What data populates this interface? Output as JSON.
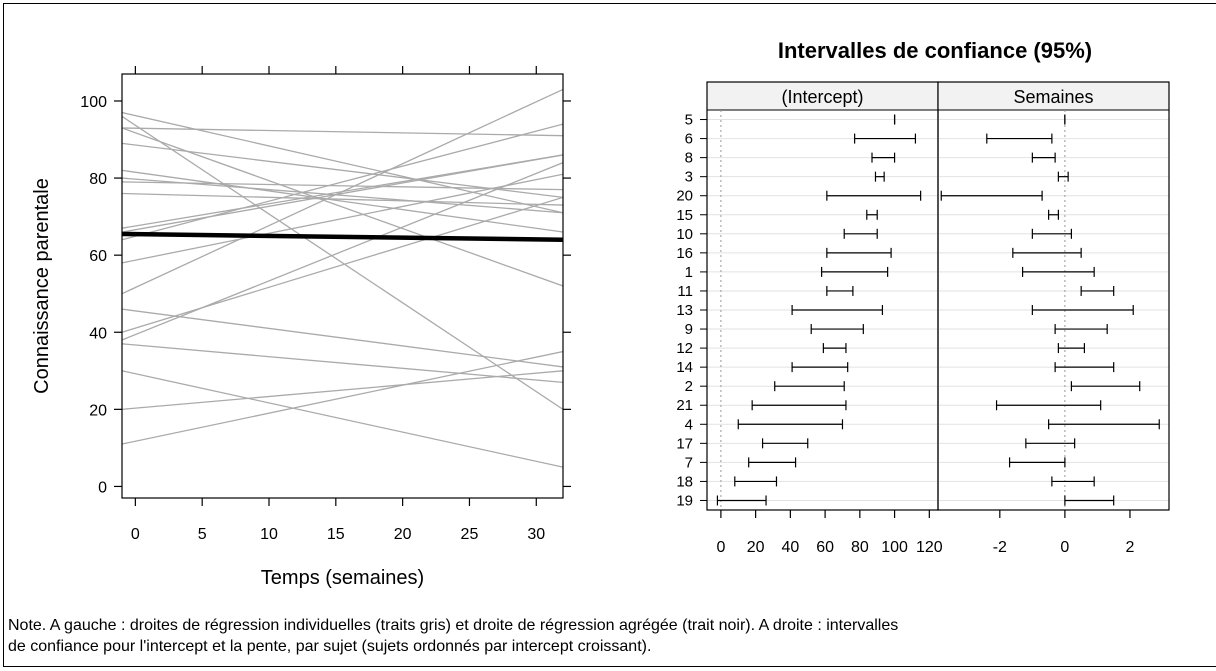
{
  "chart_data": [
    {
      "type": "line",
      "xlabel": "Temps (semaines)",
      "ylabel": "Connaissance parentale",
      "xlim": [
        -1,
        32
      ],
      "ylim": [
        -3,
        107
      ],
      "xticks": [
        "0",
        "5",
        "10",
        "15",
        "20",
        "25",
        "30"
      ],
      "yticks": [
        "0",
        "20",
        "40",
        "60",
        "80",
        "100"
      ],
      "grid": false,
      "series": [
        {
          "color": "#aaaaaa",
          "x": [
            -1,
            32
          ],
          "y": [
            93,
            52
          ]
        },
        {
          "color": "#aaaaaa",
          "x": [
            -1,
            32
          ],
          "y": [
            96,
            20
          ]
        },
        {
          "color": "#aaaaaa",
          "x": [
            -1,
            32
          ],
          "y": [
            97,
            71
          ]
        },
        {
          "color": "#aaaaaa",
          "x": [
            -1,
            32
          ],
          "y": [
            93,
            91
          ]
        },
        {
          "color": "#aaaaaa",
          "x": [
            -1,
            32
          ],
          "y": [
            89,
            75
          ]
        },
        {
          "color": "#aaaaaa",
          "x": [
            -1,
            32
          ],
          "y": [
            82,
            66
          ]
        },
        {
          "color": "#aaaaaa",
          "x": [
            -1,
            32
          ],
          "y": [
            80,
            71
          ]
        },
        {
          "color": "#aaaaaa",
          "x": [
            -1,
            32
          ],
          "y": [
            79,
            77
          ]
        },
        {
          "color": "#aaaaaa",
          "x": [
            -1,
            32
          ],
          "y": [
            76,
            73
          ]
        },
        {
          "color": "#aaaaaa",
          "x": [
            -1,
            32
          ],
          "y": [
            67,
            86
          ]
        },
        {
          "color": "#aaaaaa",
          "x": [
            -1,
            32
          ],
          "y": [
            66,
            86
          ]
        },
        {
          "color": "#aaaaaa",
          "x": [
            -1,
            32
          ],
          "y": [
            64,
            94
          ]
        },
        {
          "color": "#aaaaaa",
          "x": [
            -1,
            32
          ],
          "y": [
            58,
            81
          ]
        },
        {
          "color": "#aaaaaa",
          "x": [
            -1,
            32
          ],
          "y": [
            50,
            103
          ]
        },
        {
          "color": "#aaaaaa",
          "x": [
            -1,
            32
          ],
          "y": [
            46,
            31
          ]
        },
        {
          "color": "#aaaaaa",
          "x": [
            -1,
            32
          ],
          "y": [
            40,
            75
          ]
        },
        {
          "color": "#aaaaaa",
          "x": [
            -1,
            32
          ],
          "y": [
            38,
            84
          ]
        },
        {
          "color": "#aaaaaa",
          "x": [
            -1,
            32
          ],
          "y": [
            37,
            27
          ]
        },
        {
          "color": "#aaaaaa",
          "x": [
            -1,
            32
          ],
          "y": [
            30,
            5
          ]
        },
        {
          "color": "#aaaaaa",
          "x": [
            -1,
            32
          ],
          "y": [
            20,
            30
          ]
        },
        {
          "color": "#aaaaaa",
          "x": [
            -1,
            32
          ],
          "y": [
            11,
            35
          ]
        },
        {
          "color": "#000000",
          "x": [
            -1,
            32
          ],
          "y": [
            65.5,
            64
          ]
        }
      ]
    },
    {
      "type": "interval",
      "title": "Intervalles de confiance (95%)",
      "subjects": [
        "5",
        "6",
        "8",
        "3",
        "20",
        "15",
        "10",
        "16",
        "1",
        "11",
        "13",
        "9",
        "12",
        "14",
        "2",
        "21",
        "4",
        "17",
        "7",
        "18",
        "19"
      ],
      "panels": [
        {
          "name": "(Intercept)",
          "xlim": [
            -8,
            125
          ],
          "xticks": [
            "0",
            "20",
            "40",
            "60",
            "80",
            "100",
            "120"
          ],
          "refline": 0,
          "intervals": [
            [
              100,
              100
            ],
            [
              77,
              112
            ],
            [
              87,
              100
            ],
            [
              89,
              94
            ],
            [
              61,
              115
            ],
            [
              84,
              90
            ],
            [
              71,
              90
            ],
            [
              61,
              98
            ],
            [
              58,
              96
            ],
            [
              61,
              76
            ],
            [
              41,
              93
            ],
            [
              52,
              82
            ],
            [
              59,
              72
            ],
            [
              41,
              73
            ],
            [
              31,
              71
            ],
            [
              18,
              72
            ],
            [
              10,
              70
            ],
            [
              24,
              50
            ],
            [
              16,
              43
            ],
            [
              8,
              32
            ],
            [
              -2,
              26
            ]
          ]
        },
        {
          "name": "Semaines",
          "xlim": [
            -3.9,
            3.2
          ],
          "xticks": [
            "-2",
            "0",
            "2"
          ],
          "refline": 0,
          "intervals": [
            [
              0,
              0
            ],
            [
              -2.4,
              -0.4
            ],
            [
              -1,
              -0.3
            ],
            [
              -0.2,
              0.1
            ],
            [
              -3.8,
              -0.7
            ],
            [
              -0.5,
              -0.2
            ],
            [
              -1,
              0.2
            ],
            [
              -1.6,
              0.5
            ],
            [
              -1.3,
              0.9
            ],
            [
              0.5,
              1.5
            ],
            [
              -1,
              2.1
            ],
            [
              -0.3,
              1.3
            ],
            [
              -0.2,
              0.6
            ],
            [
              -0.3,
              1.5
            ],
            [
              0.2,
              2.3
            ],
            [
              -2.1,
              1.1
            ],
            [
              -0.5,
              2.9
            ],
            [
              -1.2,
              0.3
            ],
            [
              -1.7,
              0
            ],
            [
              -0.4,
              0.9
            ],
            [
              0,
              1.5
            ]
          ]
        }
      ]
    }
  ],
  "note": {
    "line1": "Note. A gauche : droites de régression individuelles (traits gris) et droite de régression agrégée (trait noir). A droite : intervalles",
    "line2": "de confiance pour l'intercept et la pente, par sujet (sujets ordonnés par intercept croissant)."
  }
}
